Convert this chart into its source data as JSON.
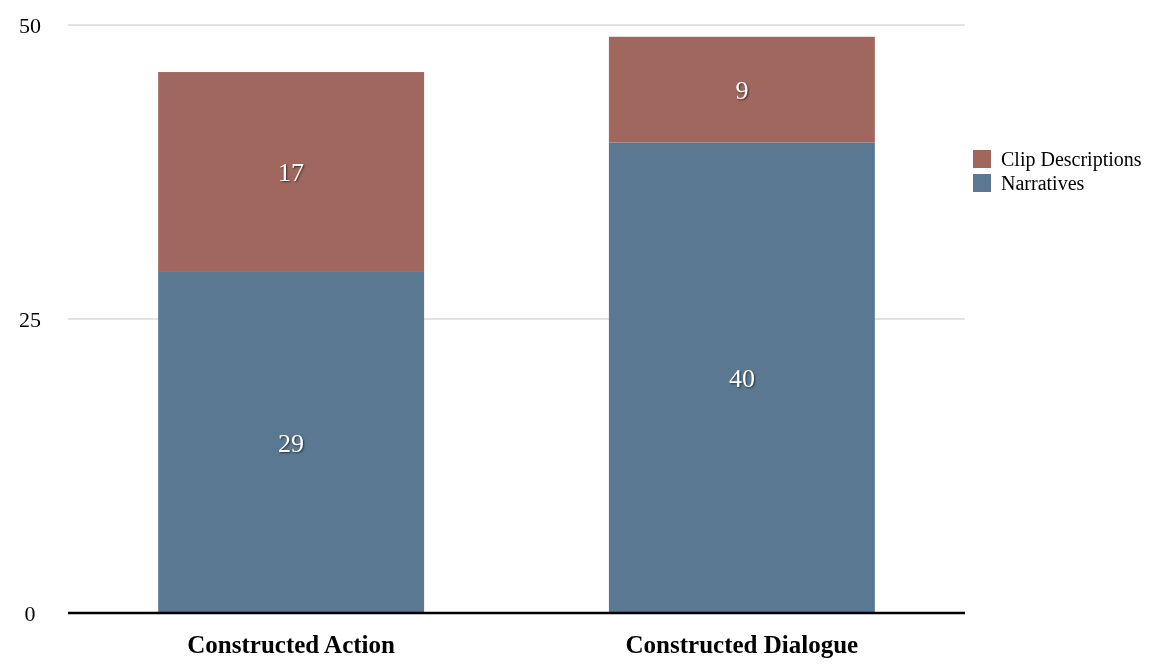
{
  "chart_data": {
    "type": "bar",
    "stacked": true,
    "categories": [
      "Constructed Action",
      "Constructed Dialogue"
    ],
    "series": [
      {
        "name": "Narratives",
        "color": "#5b7892",
        "values": [
          29,
          40
        ]
      },
      {
        "name": "Clip Descriptions",
        "color": "#a0675f",
        "values": [
          17,
          9
        ]
      }
    ],
    "ylim": [
      0,
      50
    ],
    "yticks": [
      0,
      25,
      50
    ],
    "grid": "y",
    "legend": "right",
    "data_labels": true
  }
}
